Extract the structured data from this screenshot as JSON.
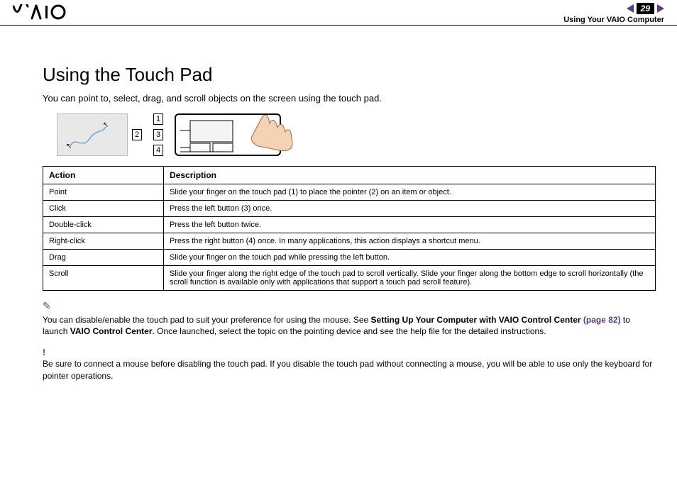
{
  "header": {
    "logo_text": "VAIO",
    "page_number": "29",
    "section": "Using Your VAIO Computer"
  },
  "title": "Using the Touch Pad",
  "intro": "You can point to, select, drag, and scroll objects on the screen using the touch pad.",
  "callouts": {
    "c1": "1",
    "c2": "2",
    "c3": "3",
    "c4": "4"
  },
  "table": {
    "head_action": "Action",
    "head_desc": "Description",
    "rows": [
      {
        "action": "Point",
        "desc": "Slide your finger on the touch pad (1) to place the pointer (2) on an item or object."
      },
      {
        "action": "Click",
        "desc": "Press the left button (3) once."
      },
      {
        "action": "Double-click",
        "desc": "Press the left button twice."
      },
      {
        "action": "Right-click",
        "desc": "Press the right button (4) once. In many applications, this action displays a shortcut menu."
      },
      {
        "action": "Drag",
        "desc": "Slide your finger on the touch pad while pressing the left button."
      },
      {
        "action": "Scroll",
        "desc": "Slide your finger along the right edge of the touch pad to scroll vertically. Slide your finger along the bottom edge to scroll horizontally (the scroll function is available only with applications that support a touch pad scroll feature)."
      }
    ]
  },
  "note": {
    "pre": "You can disable/enable the touch pad to suit your preference for using the mouse. See ",
    "bold1": "Setting Up Your Computer with VAIO Control Center",
    "link": " (page 82)",
    "mid": " to launch ",
    "bold2": "VAIO Control Center",
    "post": ". Once launched, select the topic on the pointing device and see the help file for the detailed instructions."
  },
  "warning": {
    "icon": "!",
    "text": "Be sure to connect a mouse before disabling the touch pad. If you disable the touch pad without connecting a mouse, you will be able to use only the keyboard for pointer operations."
  },
  "colors": {
    "accent": "#5b3a8f",
    "warn": "#c00000",
    "skin": "#f6d2b4",
    "skin_stroke": "#a06a3c"
  }
}
